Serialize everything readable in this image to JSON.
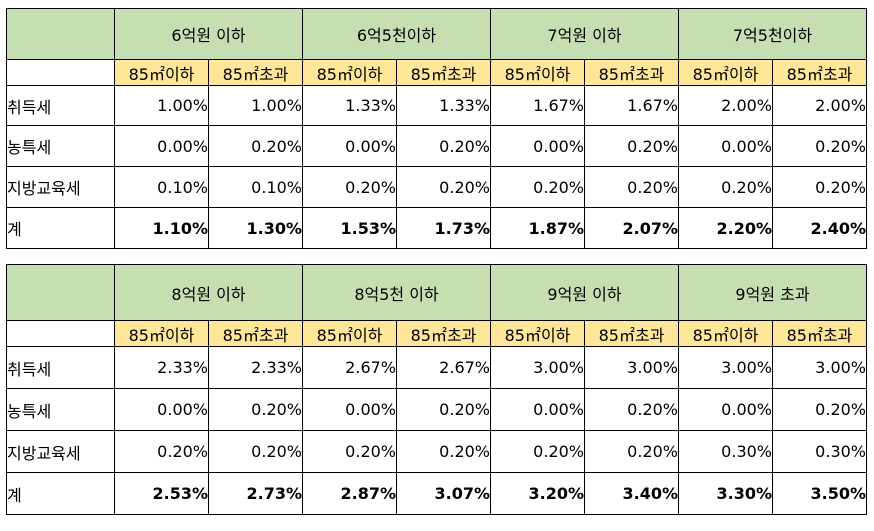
{
  "tables": [
    {
      "groups": [
        "6억원 이하",
        "6억5천이하",
        "7억원 이하",
        "7억5천이하"
      ],
      "subheaders": [
        "85㎡이하",
        "85㎡초과",
        "85㎡이하",
        "85㎡초과",
        "85㎡이하",
        "85㎡초과",
        "85㎡이하",
        "85㎡초과"
      ],
      "rows": [
        {
          "label": "취득세",
          "values": [
            "1.00%",
            "1.00%",
            "1.33%",
            "1.33%",
            "1.67%",
            "1.67%",
            "2.00%",
            "2.00%"
          ]
        },
        {
          "label": "농특세",
          "values": [
            "0.00%",
            "0.20%",
            "0.00%",
            "0.20%",
            "0.00%",
            "0.20%",
            "0.00%",
            "0.20%"
          ]
        },
        {
          "label": "지방교육세",
          "values": [
            "0.10%",
            "0.10%",
            "0.20%",
            "0.20%",
            "0.20%",
            "0.20%",
            "0.20%",
            "0.20%"
          ]
        },
        {
          "label": "계",
          "values": [
            "1.10%",
            "1.30%",
            "1.53%",
            "1.73%",
            "1.87%",
            "2.07%",
            "2.20%",
            "2.40%"
          ]
        }
      ]
    },
    {
      "groups": [
        "8억원 이하",
        "8억5천 이하",
        "9억원 이하",
        "9억원 초과"
      ],
      "subheaders": [
        "85㎡이하",
        "85㎡초과",
        "85㎡이하",
        "85㎡초과",
        "85㎡이하",
        "85㎡초과",
        "85㎡이하",
        "85㎡초과"
      ],
      "rows": [
        {
          "label": "취득세",
          "values": [
            "2.33%",
            "2.33%",
            "2.67%",
            "2.67%",
            "3.00%",
            "3.00%",
            "3.00%",
            "3.00%"
          ]
        },
        {
          "label": "농특세",
          "values": [
            "0.00%",
            "0.20%",
            "0.00%",
            "0.20%",
            "0.00%",
            "0.20%",
            "0.00%",
            "0.20%"
          ]
        },
        {
          "label": "지방교육세",
          "values": [
            "0.20%",
            "0.20%",
            "0.20%",
            "0.20%",
            "0.20%",
            "0.20%",
            "0.30%",
            "0.30%"
          ]
        },
        {
          "label": "계",
          "values": [
            "2.53%",
            "2.73%",
            "2.87%",
            "3.07%",
            "3.20%",
            "3.40%",
            "3.30%",
            "3.50%"
          ]
        }
      ]
    }
  ]
}
